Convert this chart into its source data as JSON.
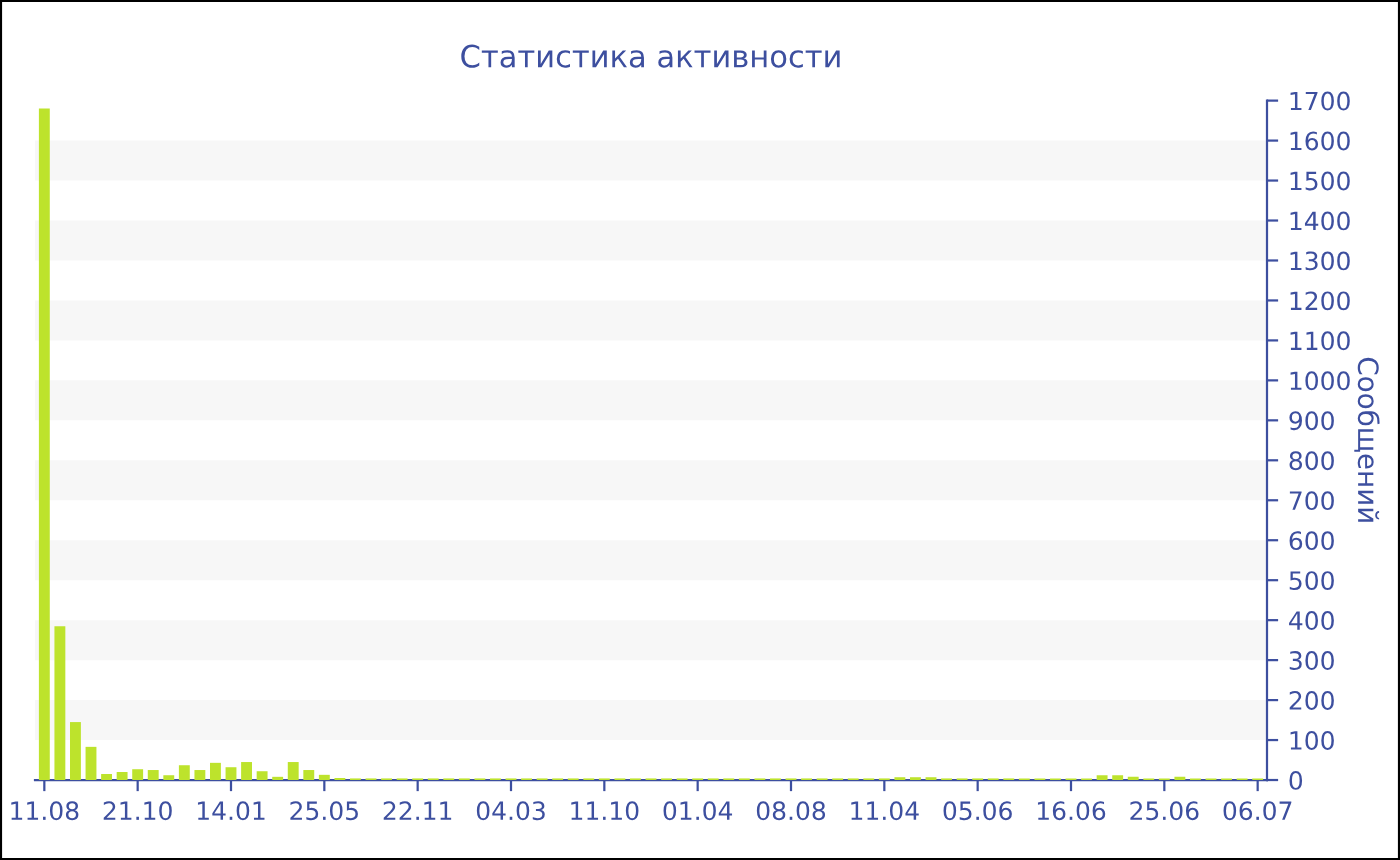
{
  "chart_data": {
    "type": "bar",
    "title": "Статистика активности",
    "ylabel": "Сообщений",
    "categories": [
      "11.08",
      null,
      null,
      null,
      null,
      null,
      "21.10",
      null,
      null,
      null,
      null,
      null,
      "14.01",
      null,
      null,
      null,
      null,
      null,
      "25.05",
      null,
      null,
      null,
      null,
      null,
      "22.11",
      null,
      null,
      null,
      null,
      null,
      "04.03",
      null,
      null,
      null,
      null,
      null,
      "11.10",
      null,
      null,
      null,
      null,
      null,
      "01.04",
      null,
      null,
      null,
      null,
      null,
      "08.08",
      null,
      null,
      null,
      null,
      null,
      "11.04",
      null,
      null,
      null,
      null,
      null,
      "05.06",
      null,
      null,
      null,
      null,
      null,
      "16.06",
      null,
      null,
      null,
      null,
      null,
      "25.06",
      null,
      null,
      null,
      null,
      null,
      "06.07"
    ],
    "values": [
      1680,
      385,
      145,
      83,
      15,
      20,
      27,
      25,
      12,
      37,
      25,
      43,
      32,
      45,
      22,
      8,
      45,
      25,
      13,
      5,
      4,
      4,
      4,
      4,
      4,
      4,
      4,
      4,
      4,
      4,
      4,
      4,
      4,
      4,
      4,
      4,
      4,
      4,
      4,
      4,
      4,
      4,
      4,
      4,
      4,
      4,
      4,
      4,
      4,
      4,
      4,
      4,
      4,
      4,
      4,
      7,
      7,
      7,
      4,
      4,
      4,
      4,
      4,
      4,
      4,
      4,
      4,
      4,
      12,
      12,
      8,
      4,
      4,
      8,
      4,
      4,
      4,
      4,
      4
    ],
    "color": "#bde32c",
    "ylim": [
      0,
      1700
    ],
    "yticks": [
      0,
      100,
      200,
      300,
      400,
      500,
      600,
      700,
      800,
      900,
      1000,
      1100,
      1200,
      1300,
      1400,
      1500,
      1600,
      1700
    ],
    "bands": [
      {
        "axis": "y",
        "from": 100,
        "to": 200,
        "color": "#f7f7f7"
      },
      {
        "axis": "y",
        "from": 300,
        "to": 400,
        "color": "#f7f7f7"
      },
      {
        "axis": "y",
        "from": 500,
        "to": 600,
        "color": "#f7f7f7"
      },
      {
        "axis": "y",
        "from": 700,
        "to": 800,
        "color": "#f7f7f7"
      },
      {
        "axis": "y",
        "from": 900,
        "to": 1000,
        "color": "#f7f7f7"
      },
      {
        "axis": "y",
        "from": 1100,
        "to": 1200,
        "color": "#f7f7f7"
      },
      {
        "axis": "y",
        "from": 1300,
        "to": 1400,
        "color": "#f7f7f7"
      },
      {
        "axis": "y",
        "from": 1500,
        "to": 1600,
        "color": "#f7f7f7"
      }
    ]
  }
}
